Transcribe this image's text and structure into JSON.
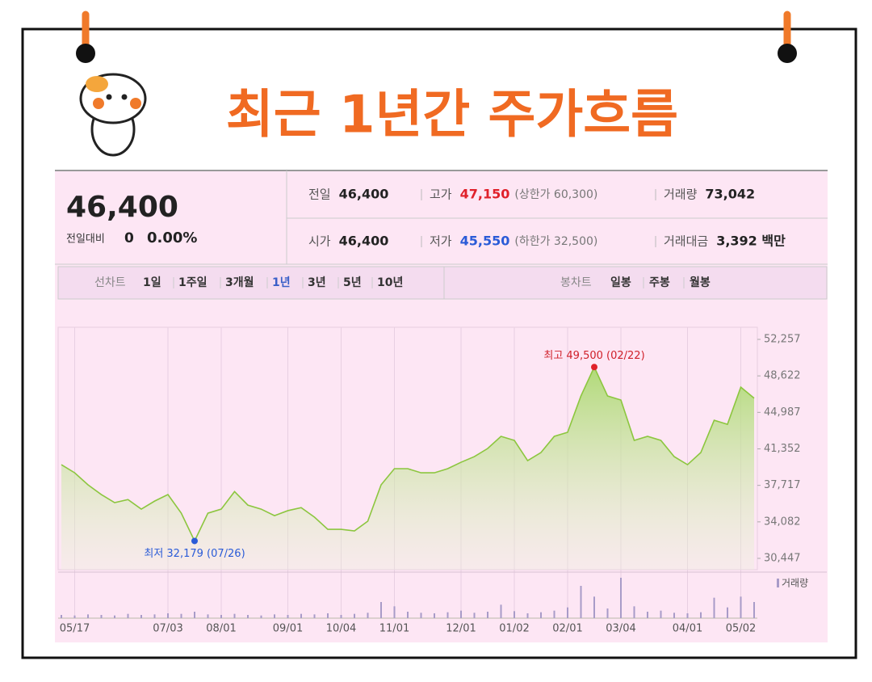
{
  "header": {
    "title": "최근 1년간 주가흐름"
  },
  "quote": {
    "price": "46,400",
    "change_label": "전일대비",
    "change": "0",
    "change_rate": "0.00%",
    "fields": [
      {
        "label": "전일",
        "value": "46,400"
      },
      {
        "label": "고가",
        "value": "47,150",
        "note": "(상한가 60,300)"
      },
      {
        "label": "거래량",
        "value": "73,042"
      },
      {
        "label": "시가",
        "value": "46,400"
      },
      {
        "label": "저가",
        "value": "45,550",
        "note": "(하한가 32,500)"
      },
      {
        "label": "거래대금",
        "value": "3,392 백만"
      }
    ]
  },
  "tabs": {
    "line_label": "선차트",
    "line_periods": [
      "1일",
      "1주일",
      "3개월",
      "1년",
      "3년",
      "5년",
      "10년"
    ],
    "candle_label": "봉차트",
    "candle_periods": [
      "일봉",
      "주봉",
      "월봉"
    ]
  },
  "chart_data": {
    "type": "line",
    "categories": [
      null,
      "05/17",
      null,
      null,
      null,
      null,
      null,
      null,
      "07/03",
      null,
      null,
      null,
      "08/01",
      null,
      null,
      null,
      null,
      "09/01",
      null,
      null,
      null,
      "10/04",
      null,
      null,
      null,
      "11/01",
      null,
      null,
      null,
      null,
      "12/01",
      null,
      null,
      null,
      "01/02",
      null,
      null,
      null,
      "02/01",
      null,
      null,
      null,
      "03/04",
      null,
      null,
      null,
      null,
      "04/01",
      null,
      null,
      null,
      "05/02",
      null
    ],
    "values": [
      39780,
      38970,
      37770,
      36800,
      36000,
      36300,
      35350,
      36150,
      36800,
      34950,
      32179,
      34950,
      35350,
      37100,
      35750,
      35350,
      34700,
      35200,
      35500,
      34550,
      33340,
      33340,
      33180,
      34150,
      37770,
      39380,
      39380,
      38970,
      38970,
      39380,
      40020,
      40580,
      41390,
      42600,
      42200,
      40180,
      40990,
      42600,
      43000,
      46620,
      49500,
      46620,
      46220,
      42200,
      42600,
      42200,
      40580,
      39780,
      40990,
      44200,
      43800,
      47500,
      46400
    ],
    "color": "#8cc63f",
    "ylim": [
      30447,
      52257
    ],
    "yticks": [
      {
        "value": 30447,
        "label": "30,447"
      },
      {
        "value": 34082,
        "label": "34,082"
      },
      {
        "value": 37717,
        "label": "37,717"
      },
      {
        "value": 41352,
        "label": "41,352"
      },
      {
        "value": 44987,
        "label": "44,987"
      },
      {
        "value": 48622,
        "label": "48,622"
      },
      {
        "value": 52257,
        "label": "52,257"
      }
    ],
    "high_label": "최고 49,500 (02/22)",
    "low_label": "최저 32,179 (07/26)",
    "volume": {
      "name": "거래량",
      "color": "#a89bc8",
      "values": [
        6,
        5,
        7,
        6,
        5,
        8,
        6,
        7,
        9,
        8,
        12,
        7,
        6,
        8,
        6,
        5,
        7,
        6,
        8,
        7,
        9,
        6,
        8,
        10,
        30,
        22,
        12,
        10,
        9,
        11,
        14,
        10,
        12,
        25,
        13,
        9,
        11,
        14,
        20,
        60,
        40,
        18,
        75,
        22,
        12,
        14,
        10,
        9,
        11,
        38,
        20,
        40,
        30
      ]
    }
  }
}
